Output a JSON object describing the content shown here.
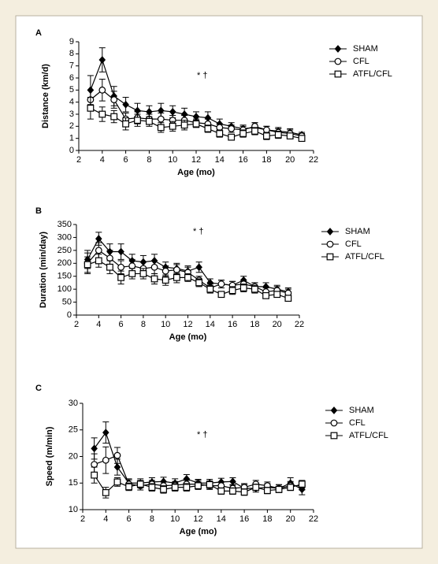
{
  "chart_data": [
    {
      "type": "line",
      "panel": "A",
      "annotation": "* †",
      "x_label": "Age (mo)",
      "y_label": "Distance (km/d)",
      "xlim": [
        2,
        22
      ],
      "xticks": [
        2,
        4,
        6,
        8,
        10,
        12,
        14,
        16,
        18,
        20,
        22
      ],
      "ylim": [
        0,
        9
      ],
      "yticks": [
        0,
        1,
        2,
        3,
        4,
        5,
        6,
        7,
        8,
        9
      ],
      "x": [
        3,
        4,
        5,
        6,
        7,
        8,
        9,
        10,
        11,
        12,
        13,
        14,
        15,
        16,
        17,
        18,
        19,
        20,
        21
      ],
      "series": [
        {
          "name": "SHAM",
          "color": "#000000",
          "marker": "diamond",
          "values": [
            5.0,
            7.5,
            4.5,
            3.8,
            3.3,
            3.2,
            3.3,
            3.2,
            3.0,
            2.8,
            2.7,
            2.2,
            2.0,
            1.8,
            1.9,
            1.7,
            1.6,
            1.5,
            1.3
          ],
          "errors": [
            1.2,
            1.0,
            0.8,
            0.6,
            0.6,
            0.5,
            0.6,
            0.5,
            0.5,
            0.4,
            0.5,
            0.4,
            0.3,
            0.3,
            0.4,
            0.3,
            0.3,
            0.3,
            0.2
          ]
        },
        {
          "name": "CFL",
          "color": "#000000",
          "marker": "circle",
          "values": [
            4.2,
            5.0,
            4.2,
            2.6,
            2.7,
            2.6,
            2.6,
            2.5,
            2.5,
            2.3,
            2.2,
            1.9,
            1.8,
            1.7,
            2.0,
            1.7,
            1.5,
            1.4,
            1.2
          ],
          "errors": [
            0.8,
            0.9,
            0.7,
            0.5,
            0.5,
            0.4,
            0.5,
            0.4,
            0.4,
            0.3,
            0.4,
            0.3,
            0.3,
            0.3,
            0.3,
            0.3,
            0.3,
            0.3,
            0.2
          ]
        },
        {
          "name": "ATFL/CFL",
          "color": "#000000",
          "marker": "square",
          "values": [
            3.5,
            3.0,
            2.8,
            2.2,
            2.5,
            2.4,
            1.9,
            2.0,
            2.1,
            2.2,
            1.8,
            1.4,
            1.1,
            1.4,
            1.6,
            1.2,
            1.3,
            1.2,
            1.0
          ],
          "errors": [
            0.9,
            0.6,
            0.5,
            0.5,
            0.5,
            0.4,
            0.4,
            0.4,
            0.4,
            0.3,
            0.3,
            0.3,
            0.2,
            0.3,
            0.3,
            0.3,
            0.3,
            0.2,
            0.2
          ]
        }
      ]
    },
    {
      "type": "line",
      "panel": "B",
      "annotation": "* †",
      "x_label": "Age (mo)",
      "y_label": "Duration (min/day)",
      "xlim": [
        2,
        22
      ],
      "xticks": [
        2,
        4,
        6,
        8,
        10,
        12,
        14,
        16,
        18,
        20,
        22
      ],
      "ylim": [
        0,
        350
      ],
      "yticks": [
        0,
        50,
        100,
        150,
        200,
        250,
        300,
        350
      ],
      "x": [
        3,
        4,
        5,
        6,
        7,
        8,
        9,
        10,
        11,
        12,
        13,
        14,
        15,
        16,
        17,
        18,
        19,
        20,
        21
      ],
      "series": [
        {
          "name": "SHAM",
          "color": "#000000",
          "marker": "diamond",
          "values": [
            215,
            295,
            245,
            245,
            210,
            205,
            210,
            185,
            180,
            170,
            185,
            125,
            120,
            115,
            135,
            110,
            110,
            100,
            90
          ],
          "errors": [
            35,
            25,
            30,
            30,
            25,
            25,
            25,
            20,
            20,
            20,
            20,
            15,
            15,
            15,
            15,
            15,
            15,
            15,
            15
          ]
        },
        {
          "name": "CFL",
          "color": "#000000",
          "marker": "circle",
          "values": [
            200,
            250,
            220,
            185,
            190,
            180,
            185,
            170,
            175,
            165,
            135,
            105,
            120,
            115,
            120,
            110,
            90,
            95,
            85
          ],
          "errors": [
            40,
            30,
            30,
            25,
            25,
            25,
            25,
            20,
            20,
            20,
            15,
            15,
            15,
            15,
            15,
            15,
            15,
            15,
            15
          ]
        },
        {
          "name": "ATFL/CFL",
          "color": "#000000",
          "marker": "square",
          "values": [
            195,
            210,
            185,
            145,
            160,
            160,
            140,
            135,
            145,
            145,
            125,
            100,
            80,
            95,
            105,
            100,
            75,
            80,
            65
          ],
          "errors": [
            30,
            25,
            25,
            25,
            20,
            20,
            20,
            20,
            20,
            15,
            15,
            15,
            10,
            15,
            15,
            15,
            10,
            10,
            10
          ]
        }
      ]
    },
    {
      "type": "line",
      "panel": "C",
      "annotation": "* †",
      "x_label": "Age (mo)",
      "y_label": "Speed (m/min)",
      "xlim": [
        2,
        22
      ],
      "xticks": [
        2,
        4,
        6,
        8,
        10,
        12,
        14,
        16,
        18,
        20,
        22
      ],
      "ylim": [
        10,
        30
      ],
      "yticks": [
        10,
        15,
        20,
        25,
        30
      ],
      "x": [
        3,
        4,
        5,
        6,
        7,
        8,
        9,
        10,
        11,
        12,
        13,
        14,
        15,
        16,
        17,
        18,
        19,
        20,
        21
      ],
      "series": [
        {
          "name": "SHAM",
          "color": "#000000",
          "marker": "diamond",
          "values": [
            21.5,
            24.5,
            18.0,
            15.0,
            15.0,
            15.2,
            15.3,
            15.0,
            15.8,
            15.0,
            15.0,
            15.2,
            15.3,
            14.0,
            14.0,
            14.2,
            14.0,
            15.0,
            13.8
          ],
          "errors": [
            2.0,
            2.0,
            1.5,
            0.8,
            0.8,
            0.8,
            0.8,
            0.8,
            0.8,
            0.7,
            0.7,
            0.7,
            0.7,
            0.7,
            0.7,
            0.7,
            0.7,
            1.0,
            1.0
          ]
        },
        {
          "name": "CFL",
          "color": "#000000",
          "marker": "circle",
          "values": [
            18.5,
            19.3,
            20.2,
            14.8,
            14.5,
            14.8,
            14.5,
            14.6,
            14.8,
            14.8,
            14.5,
            14.5,
            14.0,
            14.2,
            14.8,
            14.5,
            14.0,
            14.5,
            14.5
          ],
          "errors": [
            2.0,
            2.5,
            1.5,
            0.8,
            0.8,
            0.7,
            0.7,
            0.7,
            0.7,
            0.7,
            0.7,
            0.7,
            0.7,
            0.7,
            0.7,
            0.7,
            0.7,
            0.8,
            0.8
          ]
        },
        {
          "name": "ATFL/CFL",
          "color": "#000000",
          "marker": "square",
          "values": [
            16.5,
            13.2,
            15.2,
            14.3,
            14.8,
            14.2,
            13.8,
            14.2,
            14.2,
            14.5,
            14.7,
            13.5,
            13.5,
            13.3,
            14.2,
            13.6,
            13.8,
            14.2,
            14.8
          ],
          "errors": [
            1.5,
            1.0,
            0.8,
            0.7,
            0.7,
            0.7,
            0.7,
            0.7,
            0.7,
            0.7,
            0.7,
            0.6,
            0.6,
            0.6,
            0.6,
            0.6,
            0.6,
            0.6,
            0.7
          ]
        }
      ]
    }
  ]
}
